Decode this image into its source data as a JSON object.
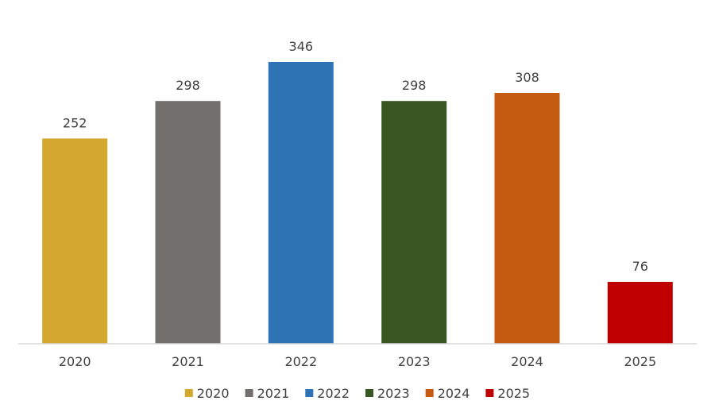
{
  "chart_data": {
    "type": "bar",
    "categories": [
      "2020",
      "2021",
      "2022",
      "2023",
      "2024",
      "2025"
    ],
    "values": [
      252,
      298,
      346,
      298,
      308,
      76
    ],
    "colors": [
      "#D4A82E",
      "#736F6C",
      "#2E74B5",
      "#385723",
      "#C55A11",
      "#C00000"
    ],
    "title": "",
    "xlabel": "",
    "ylabel": "",
    "ylim": [
      0,
      346
    ],
    "grid": false,
    "legend": {
      "position": "bottom",
      "entries": [
        "2020",
        "2021",
        "2022",
        "2023",
        "2024",
        "2025"
      ]
    }
  }
}
